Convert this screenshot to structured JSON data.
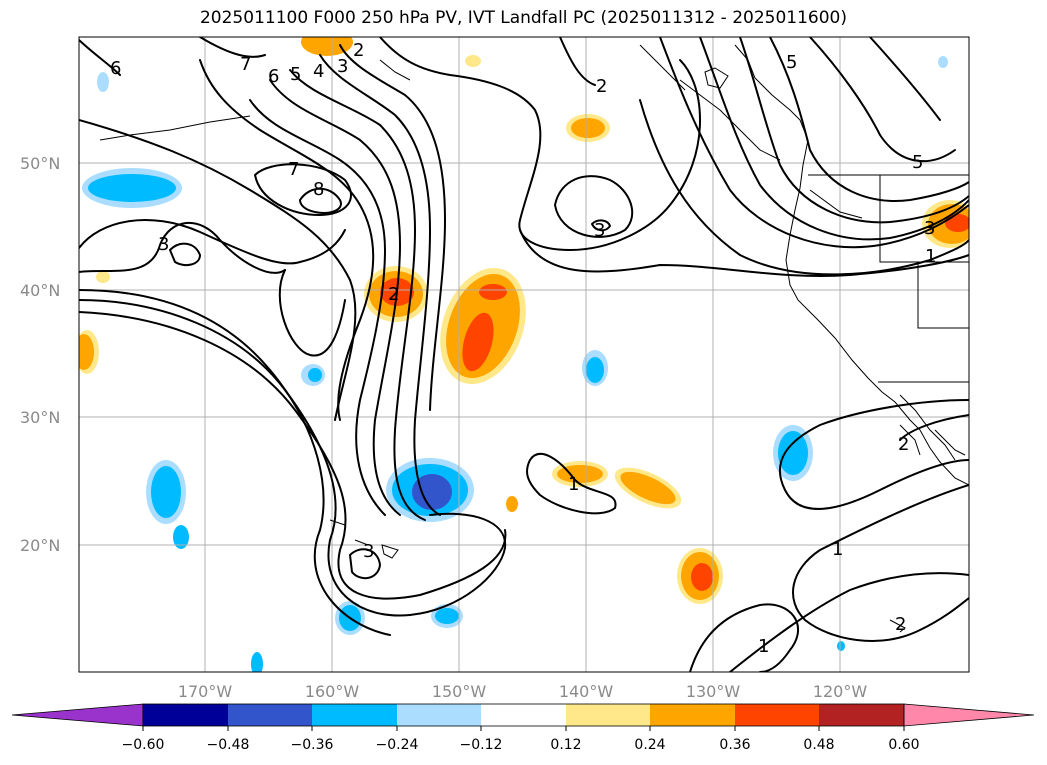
{
  "title": "2025011100 F000 250 hPa PV, IVT Landfall PC (2025011312 - 2025011600)",
  "lat_labels": [
    "50°N",
    "40°N",
    "30°N",
    "20°N"
  ],
  "lon_labels": [
    "170°W",
    "160°W",
    "150°W",
    "140°W",
    "130°W",
    "120°W"
  ],
  "colorbar": {
    "tick_labels": [
      "−0.60",
      "−0.48",
      "−0.36",
      "−0.24",
      "−0.12",
      "0.12",
      "0.24",
      "0.36",
      "0.48",
      "0.60"
    ],
    "colors": [
      "#9933cc",
      "#000099",
      "#3355cc",
      "#00bbff",
      "#aaddff",
      "#ffffff",
      "#ffe88a",
      "#ffa500",
      "#ff4400",
      "#b22222",
      "#ff88aa",
      "#ff88aa"
    ]
  },
  "contour_labels": [
    "7",
    "6",
    "5",
    "4",
    "3",
    "2",
    "6",
    "5",
    "7",
    "8",
    "3",
    "3",
    "2",
    "3",
    "1",
    "1",
    "2",
    "1",
    "1",
    "2",
    "2",
    "5",
    "3"
  ],
  "shading_colors": {
    "neg_light": "#aaddff",
    "neg_mid": "#00bbff",
    "neg_strong": "#3355cc",
    "pos_light": "#ffe88a",
    "pos_mid": "#ffa500",
    "pos_strong": "#ff4400"
  }
}
